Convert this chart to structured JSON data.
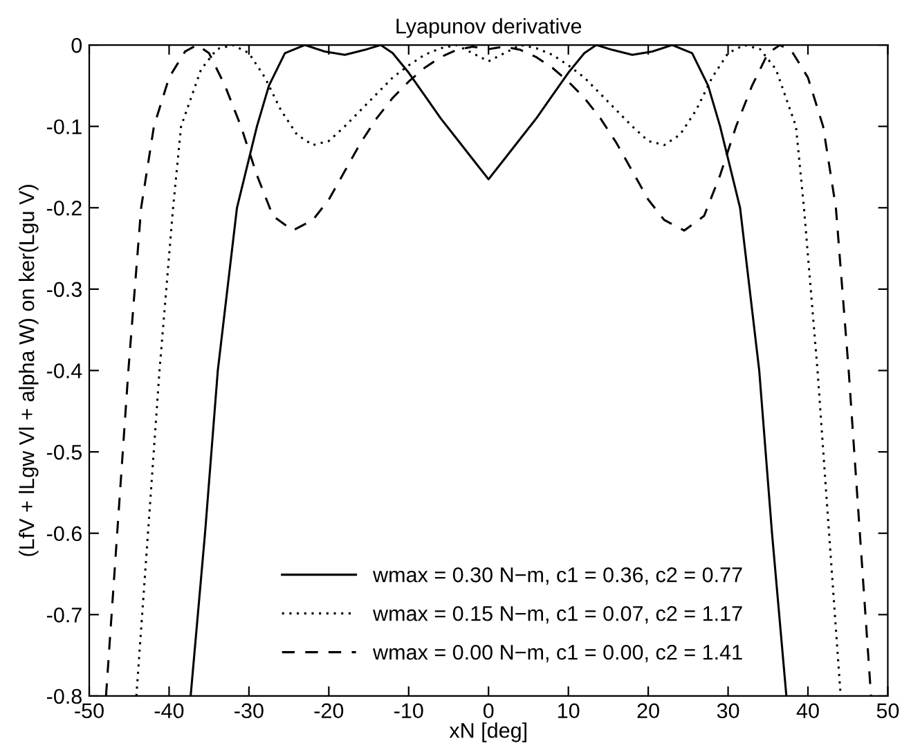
{
  "chart_data": {
    "type": "line",
    "title": "Lyapunov derivative",
    "xlabel": "xN [deg]",
    "ylabel": "(LfV + lLgw Vl + alpha W) on ker(Lgu V)",
    "xlim": [
      -50,
      50
    ],
    "ylim": [
      -0.8,
      0
    ],
    "xticks": [
      -50,
      -40,
      -30,
      -20,
      -10,
      0,
      10,
      20,
      30,
      40,
      50
    ],
    "yticks": [
      -0.8,
      -0.7,
      -0.6,
      -0.5,
      -0.4,
      -0.3,
      -0.2,
      -0.1,
      0
    ],
    "grid": false,
    "legend": "bottom",
    "marker": "none",
    "series": [
      {
        "name": "wmax = 0.30 N−m, c1 = 0.36, c2 = 0.77",
        "color": "#000000",
        "line_style": "solid",
        "x": [
          -37.3,
          -35.5,
          -33.9,
          -31.5,
          -29,
          -27.5,
          -25.5,
          -23,
          -20.5,
          -18,
          -15.5,
          -13.5,
          -12,
          -10,
          -8,
          -6,
          -4,
          -2,
          0,
          2,
          4,
          6,
          8,
          10,
          12,
          13.5,
          15.5,
          18,
          20.5,
          23,
          25.5,
          27.5,
          29,
          31.5,
          33.9,
          35.5,
          37.3
        ],
        "values": [
          -0.8,
          -0.6,
          -0.4,
          -0.2,
          -0.1,
          -0.05,
          -0.01,
          0,
          -0.008,
          -0.012,
          -0.006,
          0,
          -0.01,
          -0.034,
          -0.062,
          -0.09,
          -0.115,
          -0.14,
          -0.165,
          -0.14,
          -0.115,
          -0.09,
          -0.062,
          -0.034,
          -0.01,
          0,
          -0.006,
          -0.012,
          -0.008,
          0,
          -0.01,
          -0.05,
          -0.1,
          -0.2,
          -0.4,
          -0.6,
          -0.8
        ]
      },
      {
        "name": "wmax = 0.15 N−m, c1 = 0.07, c2 = 1.17",
        "color": "#000000",
        "line_style": "dotted",
        "x": [
          -44.1,
          -42.5,
          -41.2,
          -39.5,
          -38.5,
          -36,
          -34,
          -32,
          -30,
          -28,
          -26,
          -24,
          -22,
          -20,
          -18,
          -16,
          -14,
          -12,
          -10,
          -8,
          -6,
          -4,
          -2,
          0,
          2,
          4,
          6,
          8,
          10,
          12,
          14,
          16,
          18,
          20,
          22,
          24,
          26,
          28,
          30,
          32,
          34,
          36,
          38.5,
          39.5,
          41.2,
          42.5,
          44.1
        ],
        "values": [
          -0.8,
          -0.58,
          -0.4,
          -0.2,
          -0.1,
          -0.03,
          -0.005,
          0,
          -0.01,
          -0.04,
          -0.08,
          -0.11,
          -0.123,
          -0.118,
          -0.1,
          -0.08,
          -0.06,
          -0.04,
          -0.025,
          -0.012,
          -0.004,
          0,
          -0.01,
          -0.02,
          -0.01,
          0,
          -0.004,
          -0.012,
          -0.025,
          -0.04,
          -0.06,
          -0.08,
          -0.1,
          -0.118,
          -0.123,
          -0.11,
          -0.08,
          -0.04,
          -0.01,
          0,
          -0.005,
          -0.03,
          -0.1,
          -0.2,
          -0.4,
          -0.58,
          -0.8
        ]
      },
      {
        "name": "wmax = 0.00 N−m, c1 = 0.00, c2 = 1.41",
        "color": "#000000",
        "line_style": "dashed",
        "x": [
          -47.9,
          -46.5,
          -45.1,
          -43.5,
          -41.9,
          -40,
          -38,
          -36.5,
          -35,
          -33,
          -31,
          -29,
          -27,
          -24.5,
          -22,
          -20,
          -18,
          -16,
          -14,
          -12,
          -10,
          -8,
          -6,
          -4,
          -2,
          0,
          2,
          4,
          6,
          8,
          10,
          12,
          14,
          16,
          18,
          20,
          22,
          24.5,
          27,
          29,
          31,
          33,
          35,
          36.5,
          38,
          40,
          41.9,
          43.5,
          45.1,
          46.5,
          47.9
        ],
        "values": [
          -0.8,
          -0.6,
          -0.4,
          -0.2,
          -0.1,
          -0.04,
          -0.008,
          0,
          -0.01,
          -0.05,
          -0.1,
          -0.16,
          -0.21,
          -0.228,
          -0.215,
          -0.19,
          -0.155,
          -0.12,
          -0.09,
          -0.065,
          -0.045,
          -0.028,
          -0.015,
          -0.006,
          -0.002,
          -0.005,
          -0.002,
          -0.006,
          -0.015,
          -0.028,
          -0.045,
          -0.065,
          -0.09,
          -0.12,
          -0.155,
          -0.19,
          -0.215,
          -0.228,
          -0.21,
          -0.16,
          -0.1,
          -0.05,
          -0.01,
          0,
          -0.008,
          -0.04,
          -0.1,
          -0.2,
          -0.4,
          -0.6,
          -0.8
        ]
      }
    ]
  }
}
